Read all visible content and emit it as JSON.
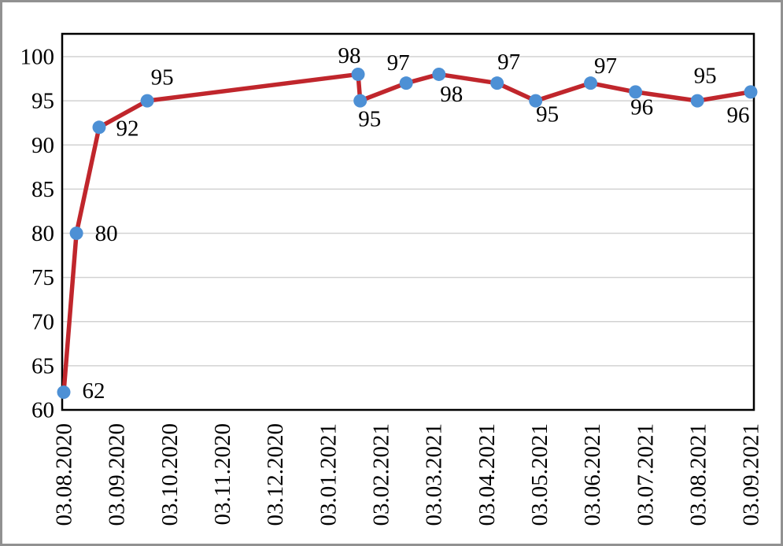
{
  "chart_data": {
    "type": "line",
    "title": "",
    "xlabel": "",
    "ylabel": "",
    "legend": "none",
    "grid": "horizontal",
    "x_tick_labels": [
      "03.08.2020",
      "03.09.2020",
      "03.10.2020",
      "03.11.2020",
      "03.12.2020",
      "03.01.2021",
      "03.02.2021",
      "03.03.2021",
      "03.04.2021",
      "03.05.2021",
      "03.06.2021",
      "03.07.2021",
      "03.08.2021",
      "03.09.2021"
    ],
    "y_ticks": [
      60,
      65,
      70,
      75,
      80,
      85,
      90,
      95,
      100
    ],
    "ylim": [
      60,
      102.5
    ],
    "series": [
      {
        "name": "values",
        "points": [
          {
            "x_idx": 0.0,
            "value": 62,
            "label": "62",
            "label_dx": 38,
            "label_dy": -2
          },
          {
            "x_idx": 0.24,
            "value": 80,
            "label": "80",
            "label_dx": 38,
            "label_dy": 0
          },
          {
            "x_idx": 0.67,
            "value": 92,
            "label": "92",
            "label_dx": 36,
            "label_dy": 1
          },
          {
            "x_idx": 1.58,
            "value": 95,
            "label": "95",
            "label_dx": 19,
            "label_dy": -30
          },
          {
            "x_idx": 5.57,
            "value": 98,
            "label": "98",
            "label_dx": -11,
            "label_dy": -24
          },
          {
            "x_idx": 5.61,
            "value": 95,
            "label": "95",
            "label_dx": 12,
            "label_dy": 23
          },
          {
            "x_idx": 6.48,
            "value": 97,
            "label": "97",
            "label_dx": -10,
            "label_dy": -26
          },
          {
            "x_idx": 7.1,
            "value": 98,
            "label": "98",
            "label_dx": 16,
            "label_dy": 25
          },
          {
            "x_idx": 8.2,
            "value": 97,
            "label": "97",
            "label_dx": 15,
            "label_dy": -27
          },
          {
            "x_idx": 8.93,
            "value": 95,
            "label": "95",
            "label_dx": 15,
            "label_dy": 17
          },
          {
            "x_idx": 9.97,
            "value": 97,
            "label": "97",
            "label_dx": 19,
            "label_dy": -22
          },
          {
            "x_idx": 10.82,
            "value": 96,
            "label": "96",
            "label_dx": 8,
            "label_dy": 19
          },
          {
            "x_idx": 11.99,
            "value": 95,
            "label": "95",
            "label_dx": 10,
            "label_dy": -32
          },
          {
            "x_idx": 13.0,
            "value": 96,
            "label": "96",
            "label_dx": -16,
            "label_dy": 29
          }
        ]
      }
    ],
    "colors": {
      "line": "#c0262c",
      "marker": "#4d90d5",
      "grid": "#d2d2d2",
      "axis_border": "#000000",
      "outer_frame": "#919191",
      "text": "#000000",
      "background": "#ffffff"
    }
  }
}
